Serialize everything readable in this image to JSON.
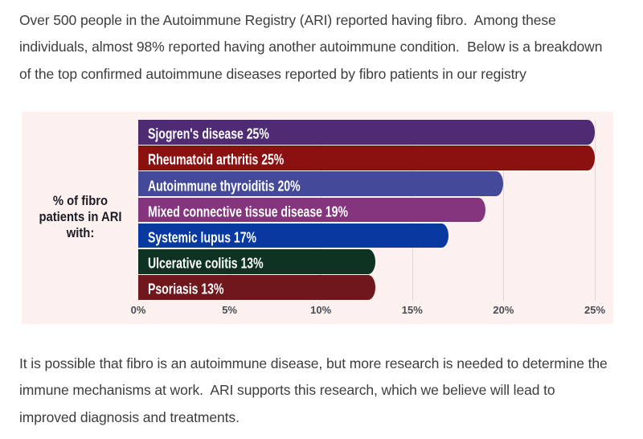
{
  "paragraphs": {
    "intro": {
      "lines": [
        "Over 500 people in the Autoimmune Registry (ARI) reported having fibro.  Among these",
        "individuals, almost 98% reported having another autoimmune condition.  Below is a breakdown",
        "of the top confirmed autoimmune diseases reported by fibro patients in our registry"
      ]
    },
    "outro": {
      "lines": [
        "It is possible that fibro is an autoimmune disease, but more research is needed to determine the",
        "immune mechanisms at work.  ARI supports this research, which we believe will lead to",
        "improved diagnosis and treatments."
      ]
    }
  },
  "chart_data": {
    "type": "bar",
    "orientation": "horizontal",
    "ylabel": "% of fibro patients in ARI with:",
    "ylabel_lines": [
      "% of fibro",
      "patients in ARI",
      "with:"
    ],
    "categories": [
      "Sjogren's disease",
      "Rheumatoid arthritis",
      "Autoimmune thyroiditis",
      "Mixed connective tissue disease",
      "Systemic lupus",
      "Ulcerative colitis",
      "Psoriasis"
    ],
    "values": [
      25,
      25,
      20,
      19,
      17,
      13,
      13
    ],
    "value_suffix": "%",
    "bar_colors": [
      "#4e2b73",
      "#8b1111",
      "#444a99",
      "#84357e",
      "#0839a0",
      "#0f3323",
      "#70171e"
    ],
    "x_ticks": [
      {
        "value": 0,
        "label": "0%"
      },
      {
        "value": 5,
        "label": "5%"
      },
      {
        "value": 10,
        "label": "10%"
      },
      {
        "value": 15,
        "label": "15%"
      },
      {
        "value": 20,
        "label": "20%"
      },
      {
        "value": 25,
        "label": "25%"
      }
    ],
    "xlim": [
      0,
      26
    ],
    "grid": true,
    "legend": false,
    "background": "#fdf1ef",
    "bar_label_color": "#ffffff"
  }
}
